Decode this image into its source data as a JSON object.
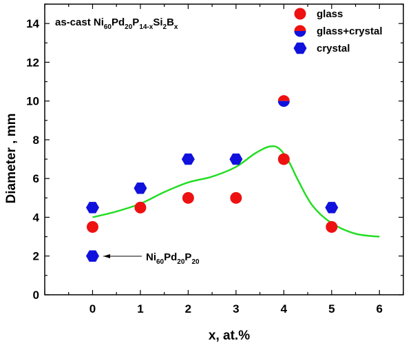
{
  "chart_data": {
    "type": "scatter",
    "title": "",
    "xlabel": "x, at.%",
    "ylabel": "Diameter , mm",
    "xlim": [
      -1,
      6.5
    ],
    "ylim": [
      0,
      15
    ],
    "xticks": [
      "0",
      "1",
      "2",
      "3",
      "4",
      "5",
      "6"
    ],
    "yticks": [
      "0",
      "2",
      "4",
      "6",
      "8",
      "10",
      "12",
      "14"
    ],
    "annotation": {
      "parts": [
        "as-cast Ni",
        "60",
        "Pd",
        "20",
        "P",
        "14-x",
        "Si",
        "2",
        "B",
        "x"
      ]
    },
    "arrow_label": {
      "parts": [
        "Ni",
        "60",
        "Pd",
        "20",
        "P",
        "20"
      ]
    },
    "series": [
      {
        "name": "glass",
        "marker": "circle",
        "color": "#ee1111",
        "x": [
          0,
          1,
          2,
          3,
          4,
          5
        ],
        "y": [
          3.5,
          4.5,
          5.0,
          5.0,
          7.0,
          3.5
        ]
      },
      {
        "name": "glass+crystal",
        "marker": "half-circle",
        "color": "#ee1111",
        "color2": "#1111dd",
        "x": [
          4
        ],
        "y": [
          10
        ]
      },
      {
        "name": "crystal",
        "marker": "hexagon",
        "color": "#1111dd",
        "x": [
          0,
          0,
          1,
          2,
          3,
          5
        ],
        "y": [
          2.0,
          4.5,
          5.5,
          7.0,
          7.0,
          4.5
        ]
      },
      {
        "name": "fit",
        "type": "line",
        "color": "#22dd22",
        "x": [
          0,
          0.5,
          1,
          1.5,
          2,
          2.5,
          3,
          3.4,
          3.7,
          3.9,
          4.1,
          4.3,
          4.6,
          5.0,
          5.5,
          6.0
        ],
        "y": [
          4.0,
          4.3,
          4.7,
          5.3,
          5.8,
          6.1,
          6.6,
          7.3,
          7.65,
          7.55,
          6.9,
          5.9,
          4.6,
          3.7,
          3.15,
          3.0
        ]
      }
    ]
  }
}
